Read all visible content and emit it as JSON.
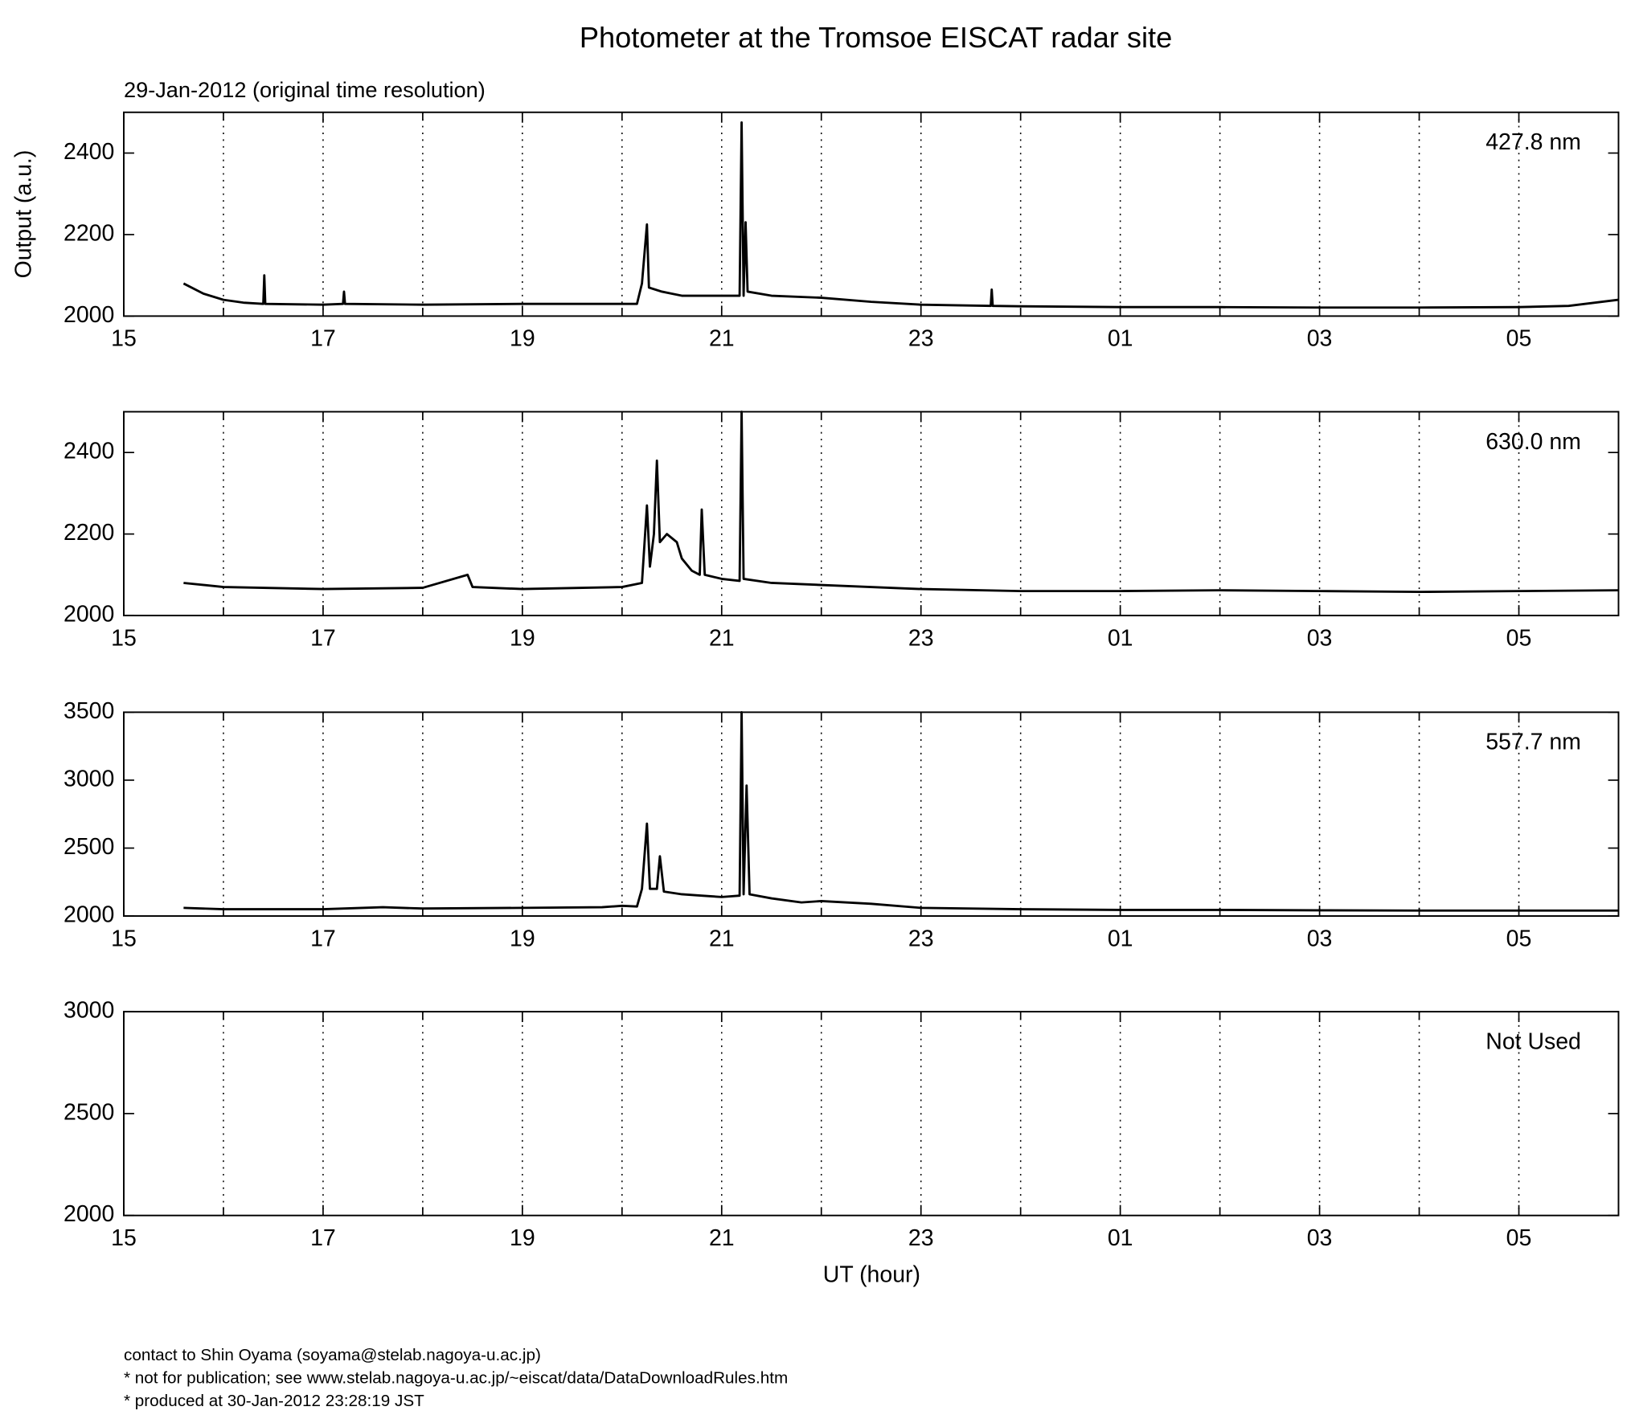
{
  "chart_data": [
    {
      "type": "line",
      "title": "Photometer at the Tromsoe EISCAT radar site",
      "subtitle": "29-Jan-2012 (original time resolution)",
      "ylabel": "Output (a.u.)",
      "annotation": "427.8 nm",
      "xlim": [
        15,
        30
      ],
      "xticks": [
        15,
        17,
        19,
        21,
        23,
        {
          "value": 25,
          "label": "01"
        },
        {
          "value": 27,
          "label": "03"
        },
        {
          "value": 29,
          "label": "05"
        }
      ],
      "minor_xticks": [
        16,
        18,
        20,
        22,
        24,
        26,
        28
      ],
      "ylim": [
        2000,
        2500
      ],
      "yticks": [
        2000,
        2200,
        2400
      ],
      "grid": true,
      "series": [
        {
          "color": "#000000",
          "x": [
            15.6,
            15.8,
            16.0,
            16.2,
            16.4,
            16.41,
            16.42,
            17,
            17.2,
            17.21,
            17.22,
            18,
            19,
            19.5,
            20,
            20.15,
            20.2,
            20.25,
            20.27,
            20.4,
            20.5,
            20.6,
            21,
            21.18,
            21.2,
            21.22,
            21.24,
            21.26,
            21.5,
            22,
            22.5,
            23,
            23.7,
            23.71,
            23.72,
            24,
            25,
            26,
            27,
            28,
            29,
            29.5,
            30
          ],
          "values": [
            2080,
            2055,
            2040,
            2033,
            2030,
            2100,
            2030,
            2028,
            2030,
            2060,
            2030,
            2028,
            2030,
            2030,
            2030,
            2030,
            2080,
            2225,
            2070,
            2060,
            2055,
            2050,
            2050,
            2050,
            2475,
            2050,
            2230,
            2060,
            2050,
            2045,
            2035,
            2028,
            2025,
            2065,
            2025,
            2024,
            2022,
            2022,
            2021,
            2021,
            2022,
            2025,
            2040
          ]
        }
      ]
    },
    {
      "type": "line",
      "annotation": "630.0 nm",
      "xlim": [
        15,
        30
      ],
      "xticks": [
        15,
        17,
        19,
        21,
        23,
        {
          "value": 25,
          "label": "01"
        },
        {
          "value": 27,
          "label": "03"
        },
        {
          "value": 29,
          "label": "05"
        }
      ],
      "minor_xticks": [
        16,
        18,
        20,
        22,
        24,
        26,
        28
      ],
      "ylim": [
        2000,
        2500
      ],
      "yticks": [
        2000,
        2200,
        2400
      ],
      "grid": true,
      "series": [
        {
          "color": "#000000",
          "x": [
            15.6,
            16,
            17,
            18,
            18.45,
            18.5,
            19,
            20,
            20.2,
            20.25,
            20.28,
            20.32,
            20.35,
            20.38,
            20.45,
            20.55,
            20.6,
            20.7,
            20.78,
            20.8,
            20.83,
            21,
            21.18,
            21.2,
            21.22,
            21.5,
            22,
            23,
            24,
            25,
            26,
            27,
            28,
            29,
            30
          ],
          "values": [
            2080,
            2070,
            2065,
            2068,
            2100,
            2070,
            2065,
            2070,
            2080,
            2270,
            2120,
            2200,
            2380,
            2180,
            2200,
            2180,
            2140,
            2110,
            2100,
            2260,
            2100,
            2090,
            2085,
            2500,
            2090,
            2080,
            2075,
            2065,
            2060,
            2060,
            2062,
            2060,
            2058,
            2060,
            2062
          ]
        }
      ]
    },
    {
      "type": "line",
      "annotation": "557.7 nm",
      "xlim": [
        15,
        30
      ],
      "xticks": [
        15,
        17,
        19,
        21,
        23,
        {
          "value": 25,
          "label": "01"
        },
        {
          "value": 27,
          "label": "03"
        },
        {
          "value": 29,
          "label": "05"
        }
      ],
      "minor_xticks": [
        16,
        18,
        20,
        22,
        24,
        26,
        28
      ],
      "ylim": [
        2000,
        3500
      ],
      "yticks": [
        2000,
        2500,
        3000,
        3500
      ],
      "grid": true,
      "series": [
        {
          "color": "#000000",
          "x": [
            15.6,
            16,
            17,
            17.6,
            18,
            19,
            19.8,
            20,
            20.15,
            20.2,
            20.25,
            20.28,
            20.35,
            20.38,
            20.42,
            20.6,
            20.8,
            21,
            21.18,
            21.2,
            21.22,
            21.25,
            21.28,
            21.5,
            21.8,
            22,
            22.5,
            23,
            24,
            25,
            26,
            27,
            28,
            29,
            30
          ],
          "values": [
            2060,
            2050,
            2050,
            2065,
            2055,
            2060,
            2065,
            2075,
            2070,
            2200,
            2680,
            2200,
            2200,
            2440,
            2180,
            2160,
            2150,
            2140,
            2150,
            3500,
            2160,
            2960,
            2160,
            2130,
            2100,
            2110,
            2090,
            2060,
            2050,
            2045,
            2045,
            2042,
            2040,
            2040,
            2040
          ]
        }
      ]
    },
    {
      "type": "line",
      "annotation": "Not Used",
      "xlabel": "UT (hour)",
      "xlim": [
        15,
        30
      ],
      "xticks": [
        15,
        17,
        19,
        21,
        23,
        {
          "value": 25,
          "label": "01"
        },
        {
          "value": 27,
          "label": "03"
        },
        {
          "value": 29,
          "label": "05"
        }
      ],
      "minor_xticks": [
        16,
        18,
        20,
        22,
        24,
        26,
        28
      ],
      "ylim": [
        2000,
        3000
      ],
      "yticks": [
        2000,
        2500,
        3000
      ],
      "grid": true,
      "series": []
    }
  ],
  "footer": [
    "contact to Shin Oyama (soyama@stelab.nagoya-u.ac.jp)",
    "* not for publication; see www.stelab.nagoya-u.ac.jp/~eiscat/data/DataDownloadRules.htm",
    "* produced at 30-Jan-2012 23:28:19 JST"
  ]
}
